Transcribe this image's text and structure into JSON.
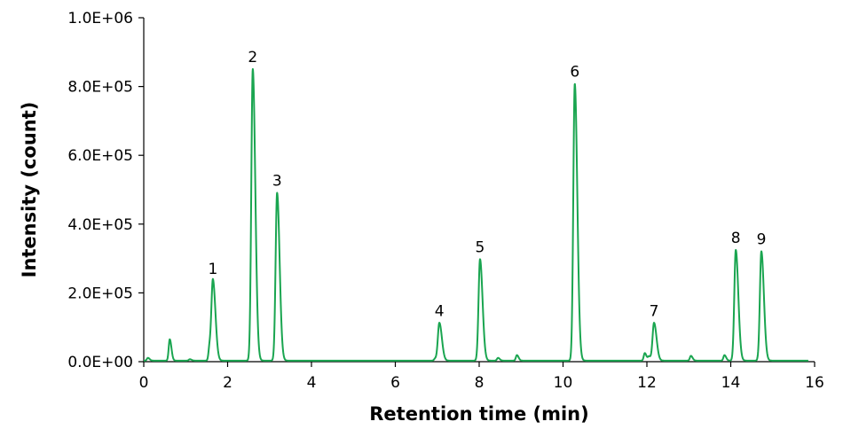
{
  "chart_data": {
    "type": "line",
    "title": "",
    "xlabel": "Retention time (min)",
    "ylabel": "Intensity (count)",
    "xlim": [
      0,
      16
    ],
    "ylim": [
      0,
      1000000
    ],
    "x_ticks": [
      0,
      2,
      4,
      6,
      8,
      10,
      12,
      14,
      16
    ],
    "x_tick_labels": [
      "0",
      "2",
      "4",
      "6",
      "8",
      "10",
      "12",
      "14",
      "16"
    ],
    "y_ticks": [
      0,
      200000,
      400000,
      600000,
      800000,
      1000000
    ],
    "y_tick_labels": [
      "0.0E+00",
      "2.0E+05",
      "4.0E+05",
      "6.0E+05",
      "8.0E+05",
      "1.0E+06"
    ],
    "grid": false,
    "legend": "none",
    "line_color": "#1aa550",
    "series": [
      {
        "peaks": [
          {
            "label": "1",
            "x": 1.65,
            "y": 232000
          },
          {
            "label": "2",
            "x": 2.6,
            "y": 848000
          },
          {
            "label": "3",
            "x": 3.18,
            "y": 488000
          },
          {
            "label": "4",
            "x": 7.05,
            "y": 110000
          },
          {
            "label": "5",
            "x": 8.02,
            "y": 295000
          },
          {
            "label": "6",
            "x": 10.28,
            "y": 805000
          },
          {
            "label": "7",
            "x": 12.17,
            "y": 110000
          },
          {
            "label": "8",
            "x": 14.12,
            "y": 322000
          },
          {
            "label": "9",
            "x": 14.73,
            "y": 318000
          }
        ],
        "minor_peaks": [
          {
            "x": 0.1,
            "y": 8000
          },
          {
            "x": 0.62,
            "y": 62000
          },
          {
            "x": 1.1,
            "y": 4000
          },
          {
            "x": 1.57,
            "y": 40000
          },
          {
            "x": 6.95,
            "y": 6000
          },
          {
            "x": 8.45,
            "y": 8000
          },
          {
            "x": 8.9,
            "y": 16000
          },
          {
            "x": 11.95,
            "y": 22000
          },
          {
            "x": 12.05,
            "y": 12000
          },
          {
            "x": 13.05,
            "y": 14000
          },
          {
            "x": 13.85,
            "y": 16000
          }
        ]
      }
    ]
  }
}
